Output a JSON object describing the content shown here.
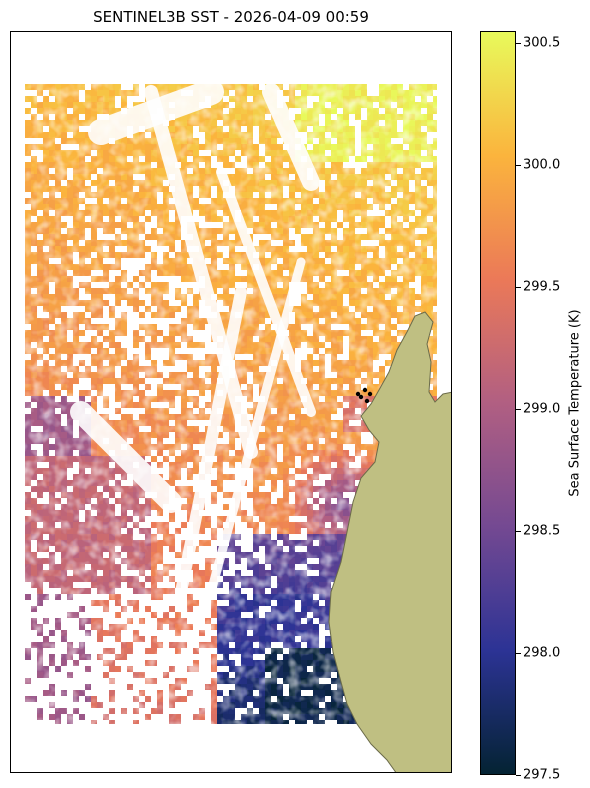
{
  "chart_data": {
    "type": "heatmap",
    "title": "SENTINEL3B SST - 2026-04-09 00:59",
    "colorbar": {
      "label": "Sea Surface Temperature (K)",
      "vmin": 297.5,
      "vmax": 300.55,
      "ticks": [
        "297.5",
        "298.0",
        "298.5",
        "299.0",
        "299.5",
        "300.0",
        "300.5"
      ],
      "colormap": "thermal",
      "colors": [
        "#042333",
        "#2c3395",
        "#744992",
        "#b15f82",
        "#eb7958",
        "#fbb43d",
        "#e8fa5b"
      ]
    },
    "land_color": "#bfbf82",
    "missing_color": "#ffffff",
    "markers_color": "#000000"
  }
}
